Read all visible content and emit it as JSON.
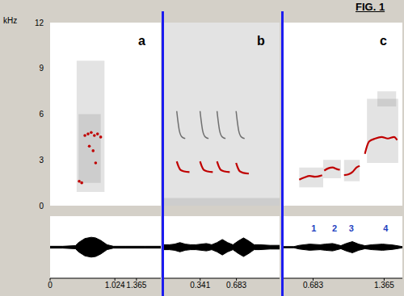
{
  "title": "FIG. 1",
  "ylabel": "kHz",
  "chart_data": [
    {
      "type": "spectrogram",
      "label": "a",
      "xlim": [
        0,
        1.75
      ],
      "xticks": [
        0,
        1.024,
        1.365
      ],
      "ylim": [
        0,
        12
      ],
      "yticks": [
        0,
        3,
        6,
        9,
        12
      ],
      "energy": [
        {
          "x": [
            0.42,
            0.86
          ],
          "y": [
            0.9,
            9.5
          ]
        },
        {
          "x": [
            0.45,
            0.8
          ],
          "y": [
            1.5,
            6
          ]
        }
      ],
      "series": [
        {
          "color": "#c00000",
          "marker": "dot",
          "x": [
            0.46,
            0.5,
            0.55,
            0.6,
            0.65,
            0.7,
            0.75,
            0.8,
            0.62,
            0.68,
            0.72
          ],
          "y": [
            1.6,
            1.5,
            4.6,
            4.7,
            4.8,
            4.6,
            4.7,
            4.5,
            3.9,
            3.6,
            2.8
          ]
        }
      ],
      "waveform": {
        "x": [
          0,
          0.2,
          0.4,
          0.45,
          0.55,
          0.65,
          0.72,
          0.8,
          0.9,
          1.0,
          1.2,
          1.5,
          1.75
        ],
        "amplitude": [
          0.03,
          0.03,
          0.05,
          0.15,
          0.28,
          0.32,
          0.3,
          0.22,
          0.08,
          0.03,
          0.03,
          0.03,
          0.03
        ],
        "ylim": [
          -1,
          1
        ]
      },
      "annotations": []
    },
    {
      "type": "spectrogram",
      "label": "b",
      "xlim": [
        0,
        1.09
      ],
      "xticks": [
        0.341,
        0.683
      ],
      "ylim": [
        0,
        12
      ],
      "tick_labels": "x",
      "energy": [
        {
          "x": [
            0,
            1.09
          ],
          "y": [
            0,
            12
          ]
        },
        {
          "x": [
            0,
            1.09
          ],
          "y": [
            0,
            0.5
          ]
        }
      ],
      "series": [
        {
          "color": "#707070",
          "line_style": "solid",
          "x": [
            0.12,
            0.13,
            0.145,
            0.17,
            0.2
          ],
          "y": [
            6.2,
            5.6,
            4.9,
            4.5,
            4.4
          ]
        },
        {
          "color": "#707070",
          "line_style": "solid",
          "x": [
            0.34,
            0.35,
            0.365,
            0.39,
            0.42
          ],
          "y": [
            6.2,
            5.6,
            4.9,
            4.5,
            4.4
          ]
        },
        {
          "color": "#707070",
          "line_style": "solid",
          "x": [
            0.5,
            0.51,
            0.525,
            0.55,
            0.58
          ],
          "y": [
            6.2,
            5.6,
            4.9,
            4.5,
            4.4
          ]
        },
        {
          "color": "#707070",
          "line_style": "solid",
          "x": [
            0.68,
            0.69,
            0.705,
            0.73,
            0.76
          ],
          "y": [
            6.2,
            5.6,
            4.9,
            4.5,
            4.4
          ]
        },
        {
          "color": "#c00000",
          "line_style": "solid",
          "x": [
            0.12,
            0.135,
            0.155,
            0.19,
            0.24
          ],
          "y": [
            2.9,
            2.6,
            2.35,
            2.25,
            2.2
          ]
        },
        {
          "color": "#c00000",
          "line_style": "solid",
          "x": [
            0.34,
            0.355,
            0.375,
            0.41,
            0.46
          ],
          "y": [
            2.9,
            2.6,
            2.35,
            2.25,
            2.2
          ]
        },
        {
          "color": "#c00000",
          "line_style": "solid",
          "x": [
            0.5,
            0.515,
            0.535,
            0.57,
            0.62
          ],
          "y": [
            2.9,
            2.6,
            2.35,
            2.25,
            2.2
          ]
        },
        {
          "color": "#c00000",
          "line_style": "solid",
          "x": [
            0.68,
            0.695,
            0.715,
            0.75,
            0.8
          ],
          "y": [
            2.8,
            2.5,
            2.25,
            2.15,
            2.1
          ]
        }
      ],
      "waveform": {
        "x": [
          0,
          0.05,
          0.1,
          0.15,
          0.2,
          0.25,
          0.3,
          0.35,
          0.4,
          0.45,
          0.5,
          0.55,
          0.6,
          0.65,
          0.7,
          0.75,
          0.8,
          0.85,
          0.9,
          1.0,
          1.09
        ],
        "amplitude": [
          0.08,
          0.08,
          0.1,
          0.15,
          0.1,
          0.08,
          0.08,
          0.1,
          0.12,
          0.08,
          0.15,
          0.25,
          0.15,
          0.08,
          0.2,
          0.3,
          0.2,
          0.08,
          0.08,
          0.06,
          0.06
        ],
        "ylim": [
          -1,
          1
        ]
      },
      "annotations": []
    },
    {
      "type": "spectrogram",
      "label": "c",
      "xlim": [
        0.4,
        1.54
      ],
      "xticks": [
        0.683,
        1.365
      ],
      "ylim": [
        0,
        12
      ],
      "tick_labels": "x",
      "energy": [
        {
          "x": [
            0.55,
            0.78
          ],
          "y": [
            1.2,
            2.5
          ]
        },
        {
          "x": [
            0.78,
            0.95
          ],
          "y": [
            1.8,
            3.0
          ]
        },
        {
          "x": [
            0.98,
            1.13
          ],
          "y": [
            1.6,
            3.0
          ]
        },
        {
          "x": [
            1.2,
            1.5
          ],
          "y": [
            2.8,
            7.0
          ]
        },
        {
          "x": [
            1.3,
            1.48
          ],
          "y": [
            6.5,
            7.5
          ]
        }
      ],
      "series": [
        {
          "color": "#c00000",
          "line_style": "solid",
          "x": [
            0.55,
            0.6,
            0.65,
            0.7,
            0.75,
            0.77
          ],
          "y": [
            1.7,
            1.85,
            1.95,
            1.9,
            1.95,
            2.0
          ]
        },
        {
          "color": "#c00000",
          "line_style": "solid",
          "x": [
            0.79,
            0.83,
            0.87,
            0.91,
            0.94
          ],
          "y": [
            2.3,
            2.45,
            2.5,
            2.4,
            2.35
          ]
        },
        {
          "color": "#c00000",
          "line_style": "solid",
          "x": [
            0.98,
            1.02,
            1.06,
            1.1,
            1.13
          ],
          "y": [
            2.0,
            2.05,
            2.2,
            2.5,
            2.6
          ]
        },
        {
          "color": "#c00000",
          "line_style": "solid",
          "x": [
            1.18,
            1.22,
            1.28,
            1.34,
            1.4,
            1.46,
            1.49
          ],
          "y": [
            3.4,
            4.2,
            4.4,
            4.5,
            4.4,
            4.5,
            4.3
          ]
        }
      ],
      "waveform": {
        "x": [
          0.4,
          0.5,
          0.55,
          0.65,
          0.75,
          0.8,
          0.87,
          0.95,
          1.0,
          1.06,
          1.12,
          1.18,
          1.25,
          1.35,
          1.45,
          1.54
        ],
        "amplitude": [
          0.02,
          0.02,
          0.06,
          0.1,
          0.08,
          0.1,
          0.12,
          0.05,
          0.12,
          0.18,
          0.1,
          0.05,
          0.08,
          0.1,
          0.07,
          0.02
        ],
        "ylim": [
          -1,
          1
        ]
      },
      "annotations": [
        {
          "text": "1",
          "x": 0.69,
          "color": "#1f3fbf"
        },
        {
          "text": "2",
          "x": 0.89,
          "color": "#1f3fbf"
        },
        {
          "text": "3",
          "x": 1.05,
          "color": "#1f3fbf"
        },
        {
          "text": "4",
          "x": 1.38,
          "color": "#1f3fbf"
        }
      ]
    }
  ]
}
